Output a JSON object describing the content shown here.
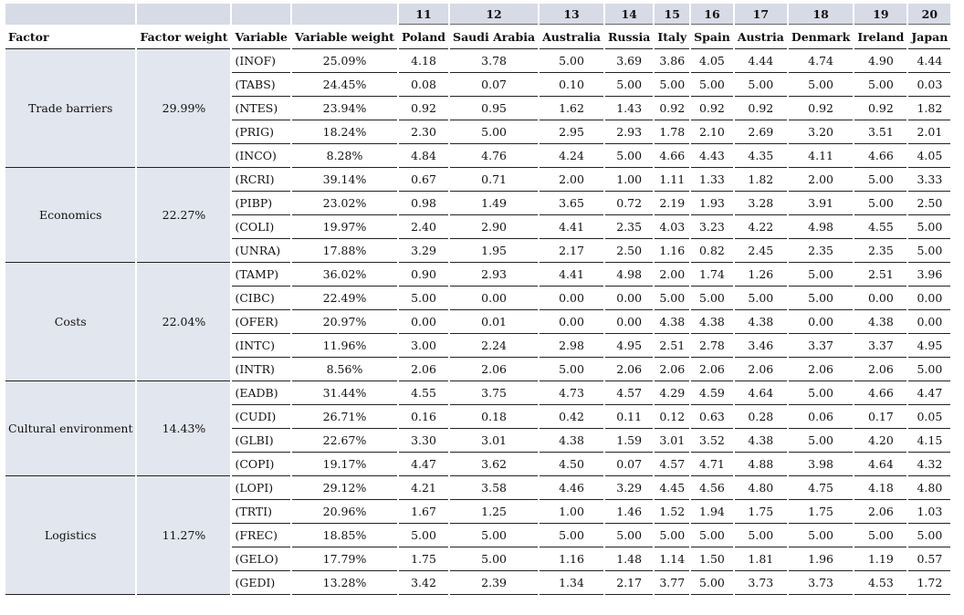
{
  "country_numbers": [
    "11",
    "12",
    "13",
    "14",
    "15",
    "16",
    "17",
    "18",
    "19",
    "20"
  ],
  "headers": {
    "factor": "Factor",
    "factor_weight": "Factor weight",
    "variable": "Variable",
    "variable_weight": "Variable weight",
    "countries": [
      "Poland",
      "Saudi Arabia",
      "Australia",
      "Russia",
      "Italy",
      "Spain",
      "Austria",
      "Denmark",
      "Ireland",
      "Japan"
    ]
  },
  "groups": [
    {
      "factor": "Trade barriers",
      "weight": "29.99%",
      "rows": [
        {
          "variable": "(INOF)",
          "weight": "25.09%",
          "values": [
            "4.18",
            "3.78",
            "5.00",
            "3.69",
            "3.86",
            "4.05",
            "4.44",
            "4.74",
            "4.90",
            "4.44"
          ]
        },
        {
          "variable": "(TABS)",
          "weight": "24.45%",
          "values": [
            "0.08",
            "0.07",
            "0.10",
            "5.00",
            "5.00",
            "5.00",
            "5.00",
            "5.00",
            "5.00",
            "0.03"
          ]
        },
        {
          "variable": "(NTES)",
          "weight": "23.94%",
          "values": [
            "0.92",
            "0.95",
            "1.62",
            "1.43",
            "0.92",
            "0.92",
            "0.92",
            "0.92",
            "0.92",
            "1.82"
          ]
        },
        {
          "variable": "(PRIG)",
          "weight": "18.24%",
          "values": [
            "2.30",
            "5.00",
            "2.95",
            "2.93",
            "1.78",
            "2.10",
            "2.69",
            "3.20",
            "3.51",
            "2.01"
          ]
        },
        {
          "variable": "(INCO)",
          "weight": "8.28%",
          "values": [
            "4.84",
            "4.76",
            "4.24",
            "5.00",
            "4.66",
            "4.43",
            "4.35",
            "4.11",
            "4.66",
            "4.05"
          ]
        }
      ]
    },
    {
      "factor": "Economics",
      "weight": "22.27%",
      "rows": [
        {
          "variable": "(RCRI)",
          "weight": "39.14%",
          "values": [
            "0.67",
            "0.71",
            "2.00",
            "1.00",
            "1.11",
            "1.33",
            "1.82",
            "2.00",
            "5.00",
            "3.33"
          ]
        },
        {
          "variable": "(PIBP)",
          "weight": "23.02%",
          "values": [
            "0.98",
            "1.49",
            "3.65",
            "0.72",
            "2.19",
            "1.93",
            "3.28",
            "3.91",
            "5.00",
            "2.50"
          ]
        },
        {
          "variable": "(COLI)",
          "weight": "19.97%",
          "values": [
            "2.40",
            "2.90",
            "4.41",
            "2.35",
            "4.03",
            "3.23",
            "4.22",
            "4.98",
            "4.55",
            "5.00"
          ]
        },
        {
          "variable": "(UNRA)",
          "weight": "17.88%",
          "values": [
            "3.29",
            "1.95",
            "2.17",
            "2.50",
            "1.16",
            "0.82",
            "2.45",
            "2.35",
            "2.35",
            "5.00"
          ]
        }
      ]
    },
    {
      "factor": "Costs",
      "weight": "22.04%",
      "rows": [
        {
          "variable": "(TAMP)",
          "weight": "36.02%",
          "values": [
            "0.90",
            "2.93",
            "4.41",
            "4.98",
            "2.00",
            "1.74",
            "1.26",
            "5.00",
            "2.51",
            "3.96"
          ]
        },
        {
          "variable": "(CIBC)",
          "weight": "22.49%",
          "values": [
            "5.00",
            "0.00",
            "0.00",
            "0.00",
            "5.00",
            "5.00",
            "5.00",
            "5.00",
            "0.00",
            "0.00"
          ]
        },
        {
          "variable": "(OFER)",
          "weight": "20.97%",
          "values": [
            "0.00",
            "0.01",
            "0.00",
            "0.00",
            "4.38",
            "4.38",
            "4.38",
            "0.00",
            "4.38",
            "0.00"
          ]
        },
        {
          "variable": "(INTC)",
          "weight": "11.96%",
          "values": [
            "3.00",
            "2.24",
            "2.98",
            "4.95",
            "2.51",
            "2.78",
            "3.46",
            "3.37",
            "3.37",
            "4.95"
          ]
        },
        {
          "variable": "(INTR)",
          "weight": "8.56%",
          "values": [
            "2.06",
            "2.06",
            "5.00",
            "2.06",
            "2.06",
            "2.06",
            "2.06",
            "2.06",
            "2.06",
            "5.00"
          ]
        }
      ]
    },
    {
      "factor": "Cultural environment",
      "weight": "14.43%",
      "rows": [
        {
          "variable": "(EADB)",
          "weight": "31.44%",
          "values": [
            "4.55",
            "3.75",
            "4.73",
            "4.57",
            "4.29",
            "4.59",
            "4.64",
            "5.00",
            "4.66",
            "4.47"
          ]
        },
        {
          "variable": "(CUDI)",
          "weight": "26.71%",
          "values": [
            "0.16",
            "0.18",
            "0.42",
            "0.11",
            "0.12",
            "0.63",
            "0.28",
            "0.06",
            "0.17",
            "0.05"
          ]
        },
        {
          "variable": "(GLBI)",
          "weight": "22.67%",
          "values": [
            "3.30",
            "3.01",
            "4.38",
            "1.59",
            "3.01",
            "3.52",
            "4.38",
            "5.00",
            "4.20",
            "4.15"
          ]
        },
        {
          "variable": "(COPI)",
          "weight": "19.17%",
          "values": [
            "4.47",
            "3.62",
            "4.50",
            "0.07",
            "4.57",
            "4.71",
            "4.88",
            "3.98",
            "4.64",
            "4.32"
          ]
        }
      ]
    },
    {
      "factor": "Logistics",
      "weight": "11.27%",
      "rows": [
        {
          "variable": "(LOPI)",
          "weight": "29.12%",
          "values": [
            "4.21",
            "3.58",
            "4.46",
            "3.29",
            "4.45",
            "4.56",
            "4.80",
            "4.75",
            "4.18",
            "4.80"
          ]
        },
        {
          "variable": "(TRTI)",
          "weight": "20.96%",
          "values": [
            "1.67",
            "1.25",
            "1.00",
            "1.46",
            "1.52",
            "1.94",
            "1.75",
            "1.75",
            "2.06",
            "1.03"
          ]
        },
        {
          "variable": "(FREC)",
          "weight": "18.85%",
          "values": [
            "5.00",
            "5.00",
            "5.00",
            "5.00",
            "5.00",
            "5.00",
            "5.00",
            "5.00",
            "5.00",
            "5.00"
          ]
        },
        {
          "variable": "(GELO)",
          "weight": "17.79%",
          "values": [
            "1.75",
            "5.00",
            "1.16",
            "1.48",
            "1.14",
            "1.50",
            "1.81",
            "1.96",
            "1.19",
            "0.57"
          ]
        },
        {
          "variable": "(GEDI)",
          "weight": "13.28%",
          "values": [
            "3.42",
            "2.39",
            "1.34",
            "2.17",
            "3.77",
            "5.00",
            "3.73",
            "3.73",
            "4.53",
            "1.72"
          ]
        }
      ]
    }
  ]
}
